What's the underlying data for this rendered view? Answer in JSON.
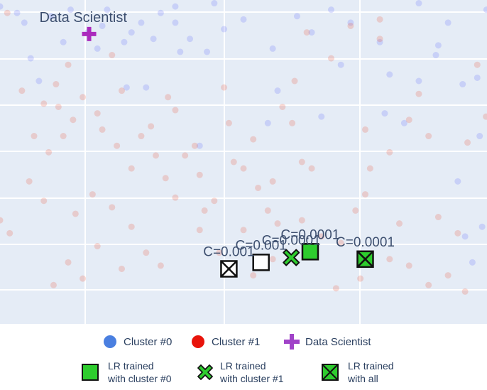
{
  "chart_data": {
    "type": "scatter",
    "background": "#e5ecf6",
    "colors": {
      "cluster0": "#636efa",
      "cluster1": "#ef553b",
      "data_scientist": "#ab2bbd",
      "lr_fill": "#2ecc2e",
      "lr_stroke": "#111111",
      "annotation": "#3d4f6f"
    },
    "point_opacity": 0.22,
    "cluster0_points": [
      [
        0.0,
        0.98
      ],
      [
        0.035,
        0.96
      ],
      [
        0.05,
        0.93
      ],
      [
        0.063,
        0.82
      ],
      [
        0.105,
        0.95
      ],
      [
        0.145,
        0.97
      ],
      [
        0.18,
        0.9
      ],
      [
        0.2,
        0.85
      ],
      [
        0.21,
        0.92
      ],
      [
        0.255,
        0.87
      ],
      [
        0.26,
        0.73
      ],
      [
        0.27,
        0.9
      ],
      [
        0.29,
        0.93
      ],
      [
        0.3,
        0.73
      ],
      [
        0.315,
        0.88
      ],
      [
        0.33,
        0.96
      ],
      [
        0.36,
        0.98
      ],
      [
        0.36,
        0.93
      ],
      [
        0.37,
        0.84
      ],
      [
        0.39,
        0.88
      ],
      [
        0.41,
        0.55
      ],
      [
        0.44,
        0.99
      ],
      [
        0.46,
        0.91
      ],
      [
        0.5,
        0.94
      ],
      [
        0.55,
        0.62
      ],
      [
        0.56,
        0.85
      ],
      [
        0.61,
        0.95
      ],
      [
        0.64,
        0.9
      ],
      [
        0.68,
        0.97
      ],
      [
        0.72,
        0.93
      ],
      [
        0.78,
        0.87
      ],
      [
        0.79,
        0.65
      ],
      [
        0.8,
        0.77
      ],
      [
        0.83,
        0.62
      ],
      [
        0.86,
        0.75
      ],
      [
        0.895,
        0.83
      ],
      [
        0.92,
        0.93
      ],
      [
        0.94,
        0.44
      ],
      [
        0.98,
        0.76
      ],
      [
        0.955,
        0.27
      ],
      [
        0.97,
        0.19
      ],
      [
        0.985,
        0.58
      ],
      [
        0.99,
        0.3
      ],
      [
        0.999,
        0.97
      ],
      [
        0.7,
        0.8
      ],
      [
        0.57,
        0.72
      ],
      [
        0.66,
        0.64
      ],
      [
        0.08,
        0.75
      ],
      [
        0.13,
        0.87
      ],
      [
        0.22,
        0.97
      ],
      [
        0.425,
        0.84
      ],
      [
        0.86,
        0.99
      ],
      [
        0.9,
        0.86
      ],
      [
        0.95,
        0.74
      ]
    ],
    "cluster1_points": [
      [
        0.02,
        0.28
      ],
      [
        0.015,
        0.96
      ],
      [
        0.045,
        0.72
      ],
      [
        0.07,
        0.58
      ],
      [
        0.09,
        0.68
      ],
      [
        0.1,
        0.53
      ],
      [
        0.115,
        0.74
      ],
      [
        0.12,
        0.67
      ],
      [
        0.13,
        0.58
      ],
      [
        0.15,
        0.63
      ],
      [
        0.17,
        0.7
      ],
      [
        0.2,
        0.65
      ],
      [
        0.21,
        0.6
      ],
      [
        0.23,
        0.83
      ],
      [
        0.24,
        0.55
      ],
      [
        0.25,
        0.72
      ],
      [
        0.27,
        0.48
      ],
      [
        0.29,
        0.58
      ],
      [
        0.31,
        0.61
      ],
      [
        0.32,
        0.52
      ],
      [
        0.34,
        0.45
      ],
      [
        0.345,
        0.7
      ],
      [
        0.36,
        0.66
      ],
      [
        0.38,
        0.52
      ],
      [
        0.4,
        0.55
      ],
      [
        0.41,
        0.46
      ],
      [
        0.42,
        0.35
      ],
      [
        0.44,
        0.38
      ],
      [
        0.47,
        0.62
      ],
      [
        0.48,
        0.5
      ],
      [
        0.5,
        0.48
      ],
      [
        0.52,
        0.57
      ],
      [
        0.53,
        0.42
      ],
      [
        0.55,
        0.35
      ],
      [
        0.56,
        0.44
      ],
      [
        0.57,
        0.31
      ],
      [
        0.58,
        0.67
      ],
      [
        0.6,
        0.62
      ],
      [
        0.62,
        0.32
      ],
      [
        0.63,
        0.9
      ],
      [
        0.64,
        0.48
      ],
      [
        0.66,
        0.27
      ],
      [
        0.7,
        0.25
      ],
      [
        0.73,
        0.35
      ],
      [
        0.75,
        0.6
      ],
      [
        0.76,
        0.48
      ],
      [
        0.78,
        0.94
      ],
      [
        0.8,
        0.2
      ],
      [
        0.82,
        0.31
      ],
      [
        0.84,
        0.63
      ],
      [
        0.86,
        0.71
      ],
      [
        0.88,
        0.58
      ],
      [
        0.9,
        0.33
      ],
      [
        0.92,
        0.15
      ],
      [
        0.94,
        0.28
      ],
      [
        0.96,
        0.56
      ],
      [
        0.98,
        0.8
      ],
      [
        0.998,
        0.64
      ],
      [
        0.75,
        0.4
      ],
      [
        0.72,
        0.92
      ],
      [
        0.68,
        0.82
      ],
      [
        0.62,
        0.5
      ],
      [
        0.5,
        0.29
      ],
      [
        0.45,
        0.22
      ],
      [
        0.33,
        0.18
      ],
      [
        0.3,
        0.22
      ],
      [
        0.27,
        0.3
      ],
      [
        0.25,
        0.17
      ],
      [
        0.2,
        0.24
      ],
      [
        0.17,
        0.14
      ],
      [
        0.14,
        0.19
      ],
      [
        0.11,
        0.12
      ],
      [
        0.52,
        0.15
      ],
      [
        0.56,
        0.2
      ],
      [
        0.69,
        0.11
      ],
      [
        0.74,
        0.14
      ],
      [
        0.78,
        0.88
      ],
      [
        0.84,
        0.18
      ],
      [
        0.88,
        0.12
      ],
      [
        0.955,
        0.1
      ],
      [
        0.0,
        0.32
      ],
      [
        0.06,
        0.44
      ],
      [
        0.09,
        0.38
      ],
      [
        0.155,
        0.34
      ],
      [
        0.19,
        0.4
      ],
      [
        0.23,
        0.36
      ],
      [
        0.36,
        0.39
      ],
      [
        0.41,
        0.29
      ],
      [
        0.47,
        0.18
      ],
      [
        0.6,
        0.2
      ],
      [
        0.605,
        0.75
      ],
      [
        0.8,
        0.53
      ],
      [
        0.14,
        0.8
      ],
      [
        0.46,
        0.73
      ]
    ],
    "data_scientist": {
      "x": 0.183,
      "y": 0.895,
      "label": "Data Scientist"
    },
    "lr_points": [
      {
        "group": "all",
        "x": 0.47,
        "y": 0.17,
        "label": "C=0.001"
      },
      {
        "group": "cluster0",
        "x": 0.536,
        "y": 0.19,
        "label": "C=0.001"
      },
      {
        "group": "cluster1",
        "x": 0.598,
        "y": 0.205,
        "label": "C=0.0001"
      },
      {
        "group": "cluster0",
        "x": 0.637,
        "y": 0.223,
        "label": "C=0.0001"
      },
      {
        "group": "all",
        "x": 0.75,
        "y": 0.2,
        "label": "C=0.0001"
      }
    ],
    "xlim": [
      0,
      1
    ],
    "ylim": [
      0,
      1
    ],
    "grid": true,
    "legend_position": "bottom",
    "legend": [
      {
        "name": "Cluster #0",
        "symbol": "circle",
        "color": "#4a7fe0"
      },
      {
        "name": "Cluster #1",
        "symbol": "circle",
        "color": "#e8140b"
      },
      {
        "name": "Data Scientist",
        "symbol": "cross",
        "color": "#a042c8"
      },
      {
        "name": "LR trained\nwith cluster #0",
        "symbol": "square"
      },
      {
        "name": "LR trained\nwith cluster #1",
        "symbol": "x"
      },
      {
        "name": "LR trained\nwith all",
        "symbol": "square-x"
      }
    ]
  }
}
